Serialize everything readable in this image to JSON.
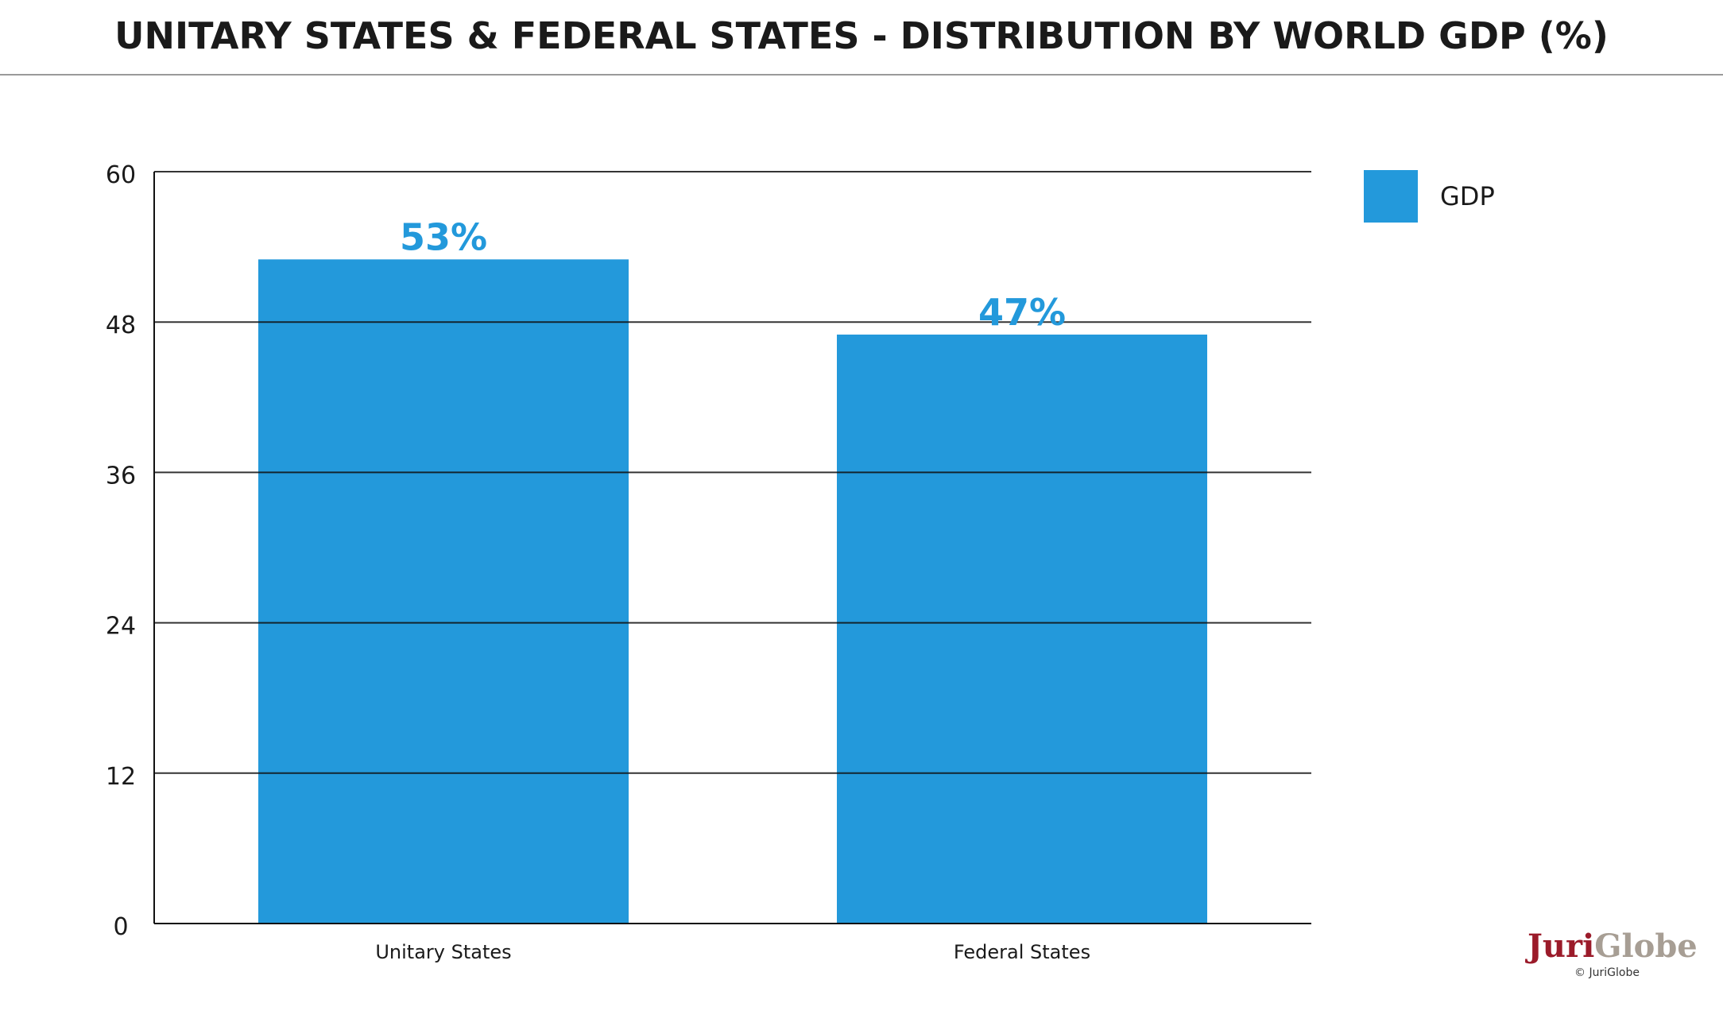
{
  "chart_data": {
    "type": "bar",
    "title": "UNITARY STATES & FEDERAL STATES - DISTRIBUTION BY WORLD GDP (%)",
    "categories": [
      "Unitary States",
      "Federal States"
    ],
    "series": [
      {
        "name": "GDP",
        "values": [
          53,
          47
        ],
        "labels": [
          "53%",
          "47%"
        ]
      }
    ],
    "ylim": [
      0,
      60
    ],
    "yticks": [
      0,
      12,
      24,
      36,
      48,
      60
    ],
    "grid": true,
    "legend": "top-right",
    "bar_color": "#2399db",
    "label_color": "#2399db"
  },
  "logo": {
    "word_part1": "Juri",
    "word_part2": "Globe",
    "copyright": "© JuriGlobe",
    "color_primary": "#9b1b2a",
    "color_secondary": "#a79e94"
  }
}
